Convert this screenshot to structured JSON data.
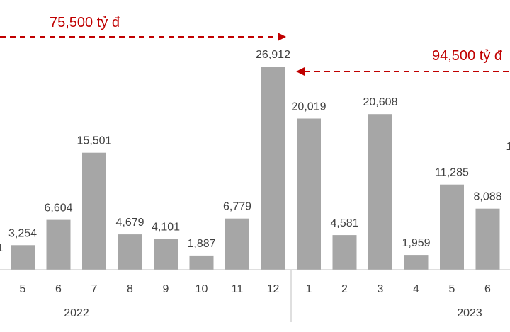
{
  "chart_data": {
    "type": "bar",
    "bar_color": "#a6a6a6",
    "label_color": "#404040",
    "axis_color": "#bfbfbf",
    "annotation_color": "#c00000",
    "categories": [
      "5",
      "6",
      "7",
      "8",
      "9",
      "10",
      "11",
      "12",
      "1",
      "2",
      "3",
      "4",
      "5",
      "6"
    ],
    "values": [
      3254,
      6604,
      15501,
      4679,
      4101,
      1887,
      6779,
      26912,
      20019,
      4581,
      20608,
      1959,
      11285,
      8088
    ],
    "value_labels": [
      "3,254",
      "6,604",
      "15,501",
      "4,679",
      "4,101",
      "1,887",
      "6,779",
      "26,912",
      "20,019",
      "4,581",
      "20,608",
      "1,959",
      "11,285",
      "8,088"
    ],
    "groups": [
      {
        "label": "2022",
        "start": 0,
        "end": 7
      },
      {
        "label": "2023",
        "start": 8,
        "end": 13
      }
    ],
    "annotations": [
      {
        "text": "75,500 tỷ đ",
        "direction": "right",
        "points_to_index": 7
      },
      {
        "text": "94,500 tỷ đ",
        "direction": "left",
        "points_to_index": 7
      }
    ],
    "partial_labels": [
      "1",
      "1"
    ],
    "ylim": [
      0,
      30000
    ]
  }
}
